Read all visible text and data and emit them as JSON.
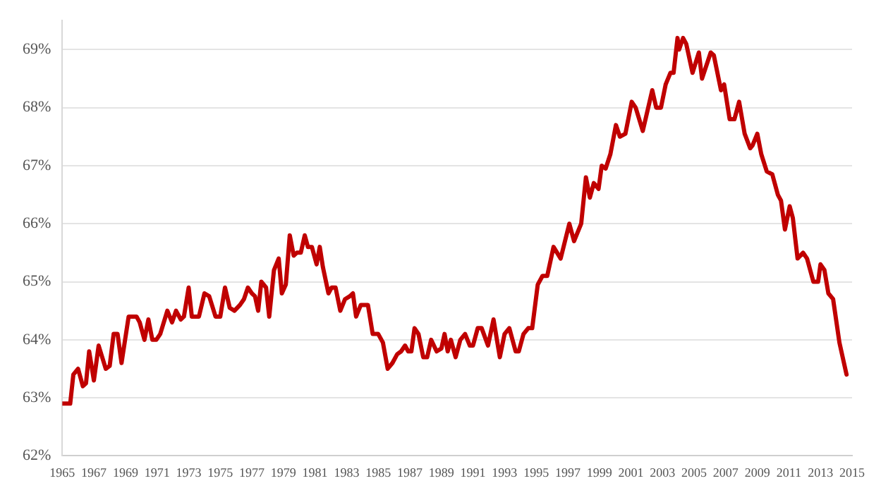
{
  "chart_data": {
    "type": "line",
    "xlim": [
      1965,
      2015
    ],
    "xticks": [
      1965,
      1967,
      1969,
      1971,
      1973,
      1975,
      1977,
      1979,
      1981,
      1983,
      1985,
      1987,
      1989,
      1991,
      1993,
      1995,
      1997,
      1999,
      2001,
      2003,
      2005,
      2007,
      2009,
      2011,
      2013,
      2015
    ],
    "ylim": [
      62,
      69.5
    ],
    "yticks": [
      {
        "value": 62,
        "label": "62%"
      },
      {
        "value": 63,
        "label": "63%"
      },
      {
        "value": 64,
        "label": "64%"
      },
      {
        "value": 65,
        "label": "65%"
      },
      {
        "value": 66,
        "label": "66%"
      },
      {
        "value": 67,
        "label": "67%"
      },
      {
        "value": 68,
        "label": "68%"
      },
      {
        "value": 69,
        "label": "69%"
      }
    ],
    "grid": "y",
    "legend": false,
    "marker": "none",
    "line_style": "solid",
    "series": [
      {
        "color": "#c00000",
        "x": [
          1965.0,
          1965.5,
          1965.7,
          1966.0,
          1966.3,
          1966.5,
          1966.7,
          1967.0,
          1967.3,
          1967.75,
          1968.0,
          1968.25,
          1968.5,
          1968.75,
          1969.2,
          1969.7,
          1969.9,
          1970.2,
          1970.45,
          1970.7,
          1970.95,
          1971.2,
          1971.65,
          1971.95,
          1972.2,
          1972.5,
          1972.7,
          1973.0,
          1973.2,
          1973.65,
          1974.0,
          1974.3,
          1974.7,
          1975.0,
          1975.3,
          1975.6,
          1975.9,
          1976.25,
          1976.5,
          1976.75,
          1977.0,
          1977.2,
          1977.4,
          1977.6,
          1977.9,
          1978.1,
          1978.4,
          1978.7,
          1978.9,
          1979.15,
          1979.4,
          1979.65,
          1979.85,
          1980.1,
          1980.35,
          1980.55,
          1980.8,
          1981.1,
          1981.3,
          1981.5,
          1981.85,
          1982.05,
          1982.3,
          1982.6,
          1982.9,
          1983.2,
          1983.4,
          1983.6,
          1983.9,
          1984.35,
          1984.65,
          1985.0,
          1985.3,
          1985.6,
          1985.9,
          1986.2,
          1986.45,
          1986.7,
          1986.9,
          1987.1,
          1987.3,
          1987.55,
          1987.85,
          1988.1,
          1988.35,
          1988.7,
          1989.0,
          1989.2,
          1989.4,
          1989.6,
          1989.9,
          1990.2,
          1990.5,
          1990.8,
          1991.0,
          1991.3,
          1991.55,
          1991.95,
          1992.3,
          1992.7,
          1993.0,
          1993.3,
          1993.7,
          1993.9,
          1994.2,
          1994.5,
          1994.75,
          1995.1,
          1995.4,
          1995.7,
          1996.1,
          1996.55,
          1997.1,
          1997.4,
          1997.85,
          1998.15,
          1998.4,
          1998.65,
          1998.95,
          1999.15,
          1999.4,
          1999.7,
          2000.05,
          2000.3,
          2000.65,
          2001.05,
          2001.3,
          2001.75,
          2002.35,
          2002.6,
          2002.9,
          2003.2,
          2003.5,
          2003.7,
          2003.95,
          2004.05,
          2004.3,
          2004.5,
          2004.9,
          2005.3,
          2005.5,
          2006.05,
          2006.25,
          2006.7,
          2006.9,
          2007.25,
          2007.55,
          2007.85,
          2008.2,
          2008.55,
          2008.7,
          2009.0,
          2009.25,
          2009.6,
          2009.95,
          2010.3,
          2010.5,
          2010.75,
          2011.05,
          2011.25,
          2011.55,
          2011.9,
          2012.15,
          2012.55,
          2012.85,
          2013.0,
          2013.25,
          2013.5,
          2013.8,
          2014.2,
          2014.65
        ],
        "values": [
          62.9,
          62.9,
          63.4,
          63.5,
          63.2,
          63.25,
          63.8,
          63.3,
          63.9,
          63.5,
          63.55,
          64.1,
          64.1,
          63.6,
          64.4,
          64.4,
          64.3,
          64.0,
          64.35,
          64.0,
          64.0,
          64.1,
          64.5,
          64.3,
          64.5,
          64.35,
          64.4,
          64.9,
          64.4,
          64.4,
          64.8,
          64.75,
          64.4,
          64.4,
          64.9,
          64.55,
          64.5,
          64.6,
          64.7,
          64.9,
          64.8,
          64.75,
          64.5,
          65.0,
          64.9,
          64.4,
          65.2,
          65.4,
          64.8,
          64.95,
          65.8,
          65.45,
          65.5,
          65.5,
          65.8,
          65.6,
          65.6,
          65.3,
          65.6,
          65.25,
          64.8,
          64.9,
          64.9,
          64.5,
          64.7,
          64.75,
          64.8,
          64.4,
          64.6,
          64.6,
          64.1,
          64.1,
          63.95,
          63.5,
          63.6,
          63.75,
          63.8,
          63.9,
          63.8,
          63.8,
          64.2,
          64.1,
          63.7,
          63.7,
          64.0,
          63.8,
          63.85,
          64.1,
          63.8,
          64.0,
          63.7,
          64.0,
          64.1,
          63.9,
          63.9,
          64.2,
          64.2,
          63.9,
          64.35,
          63.7,
          64.1,
          64.2,
          63.8,
          63.8,
          64.1,
          64.2,
          64.2,
          64.95,
          65.1,
          65.1,
          65.6,
          65.4,
          66.0,
          65.7,
          66.0,
          66.8,
          66.45,
          66.7,
          66.6,
          67.0,
          66.95,
          67.2,
          67.7,
          67.5,
          67.55,
          68.1,
          68.0,
          67.6,
          68.3,
          68.0,
          68.0,
          68.4,
          68.6,
          68.6,
          69.2,
          69.0,
          69.2,
          69.1,
          68.6,
          68.95,
          68.5,
          68.95,
          68.9,
          68.3,
          68.4,
          67.8,
          67.8,
          68.1,
          67.55,
          67.3,
          67.35,
          67.55,
          67.2,
          66.9,
          66.85,
          66.5,
          66.4,
          65.9,
          66.3,
          66.1,
          65.4,
          65.5,
          65.4,
          65.0,
          65.0,
          65.3,
          65.2,
          64.8,
          64.7,
          63.95,
          63.4
        ]
      }
    ]
  }
}
